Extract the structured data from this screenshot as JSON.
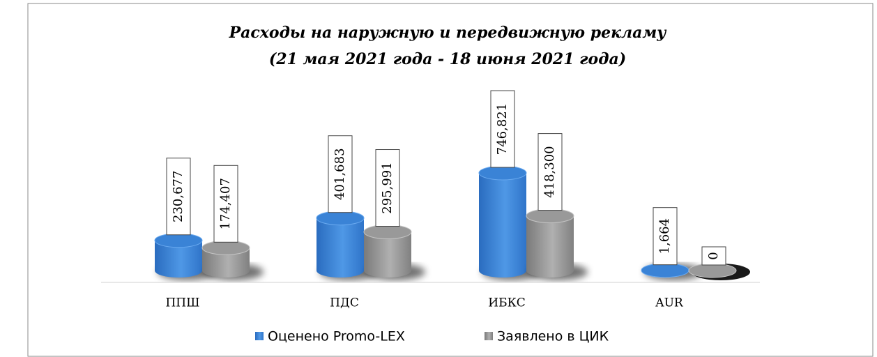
{
  "chart_data": {
    "type": "bar3d",
    "title": "Расходы на наружную и передвижную рекламу",
    "subtitle": "(21 мая 2021 года - 18 июня 2021 года)",
    "categories": [
      "ППШ",
      "ПДС",
      "ИБКС",
      "AUR"
    ],
    "series": [
      {
        "name": "Оценено Promo-LEX",
        "color": "#3a83d6",
        "values": [
          230677,
          401683,
          746821,
          1664
        ],
        "value_labels": [
          "230,677",
          "401,683",
          "746,821",
          "1,664"
        ]
      },
      {
        "name": "Заявлено в ЦИК",
        "color": "#999999",
        "values": [
          174407,
          295991,
          418300,
          0
        ],
        "value_labels": [
          "174,407",
          "295,991",
          "418,300",
          "0"
        ]
      }
    ],
    "legend": "bottom"
  }
}
